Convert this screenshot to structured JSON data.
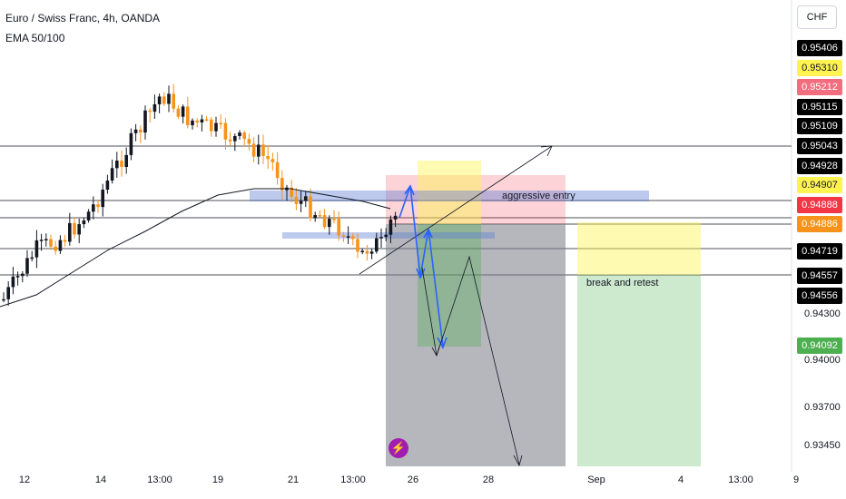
{
  "header": {
    "title": "Euro / Swiss Franc, 4h, OANDA",
    "indicator": "EMA 50/100",
    "currency": "CHF"
  },
  "price_tags": [
    {
      "text": "0.95406",
      "bg": "#000000",
      "fg": "#ffffff"
    },
    {
      "text": "0.95310",
      "bg": "#fff352",
      "fg": "#131722"
    },
    {
      "text": "0.95212",
      "bg": "#f26d7d",
      "fg": "#ffffff"
    },
    {
      "text": "0.95115",
      "bg": "#000000",
      "fg": "#ffffff"
    },
    {
      "text": "0.95109",
      "bg": "#000000",
      "fg": "#ffffff"
    },
    {
      "text": "0.95043",
      "bg": "#000000",
      "fg": "#ffffff"
    },
    {
      "text": "0.94928",
      "bg": "#000000",
      "fg": "#ffffff"
    },
    {
      "text": "0.94907",
      "bg": "#fff352",
      "fg": "#131722"
    },
    {
      "text": "0.94888",
      "bg": "#f23645",
      "fg": "#ffffff"
    },
    {
      "text": "0.94886",
      "bg": "#f7931a",
      "fg": "#ffffff"
    },
    {
      "text": "0.94719",
      "bg": "#000000",
      "fg": "#ffffff"
    },
    {
      "text": "0.94557",
      "bg": "#000000",
      "fg": "#ffffff"
    },
    {
      "text": "0.94556",
      "bg": "#000000",
      "fg": "#ffffff"
    },
    {
      "text": "0.94092",
      "bg": "#4caf50",
      "fg": "#ffffff"
    }
  ],
  "price_ticks": [
    "0.94300",
    "0.94000",
    "0.93700",
    "0.93450"
  ],
  "time_axis": [
    "12",
    "14",
    "13:00",
    "19",
    "21",
    "13:00",
    "26",
    "28",
    "Sep",
    "4",
    "13:00",
    "9"
  ],
  "annotations": {
    "aggressive_entry": "aggressive entry",
    "break_and_retest": "break and retest"
  },
  "colors": {
    "candle_up": "#131722",
    "candle_down": "#f7931a",
    "ema": "#131722",
    "zone_blue": "#5b7bd5",
    "arrow_blue": "#2962ff",
    "target_green": "#4caf50",
    "stop_red": "#f23645",
    "highlight_yellow": "#fff352"
  },
  "logo_icon": "lightning-bolt-icon"
}
